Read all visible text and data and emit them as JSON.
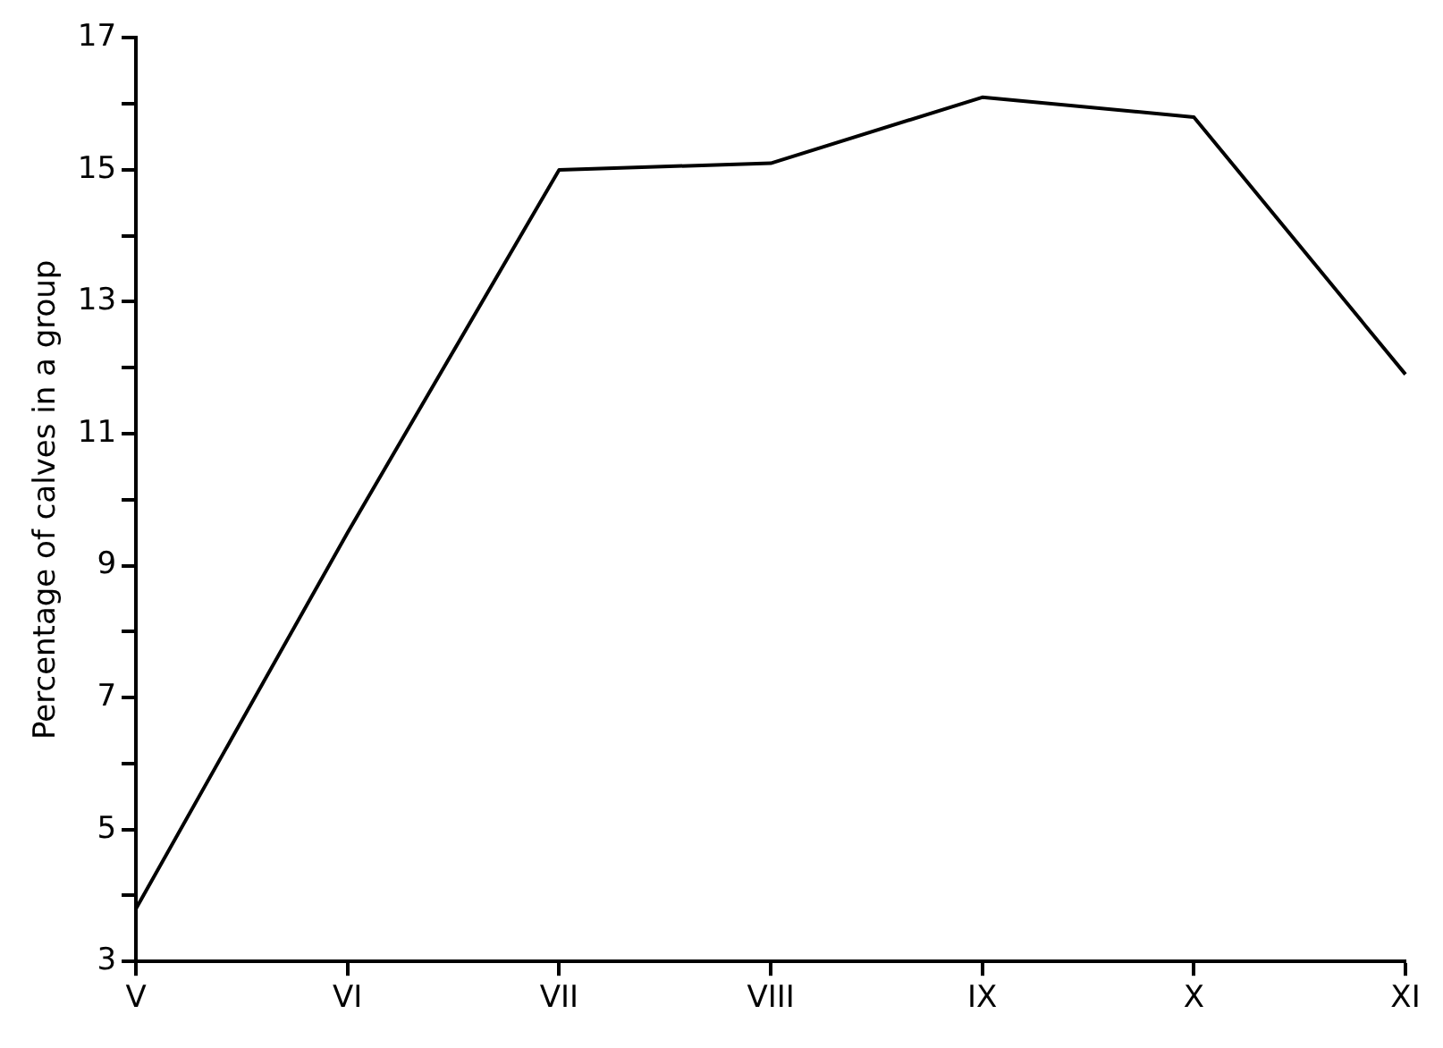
{
  "chart_data": {
    "type": "line",
    "ylabel": "Percentage of calves in a group",
    "categories": [
      "V",
      "VI",
      "VII",
      "VIII",
      "IX",
      "X",
      "XI"
    ],
    "series": [
      {
        "color": "#000000",
        "values": [
          3.8,
          9.5,
          15.0,
          15.1,
          16.1,
          15.8,
          11.9
        ]
      }
    ],
    "ylim": [
      3,
      17
    ],
    "yticks": [
      3,
      {
        "value": 4,
        "label": null
      },
      5,
      {
        "value": 6,
        "label": null
      },
      7,
      {
        "value": 8,
        "label": null
      },
      9,
      {
        "value": 10,
        "label": null
      },
      11,
      {
        "value": 12,
        "label": null
      },
      13,
      {
        "value": 14,
        "label": null
      },
      15,
      {
        "value": 16,
        "label": null
      },
      17
    ],
    "grid": false,
    "legend": false,
    "marker": "none",
    "line_style": "solid"
  }
}
